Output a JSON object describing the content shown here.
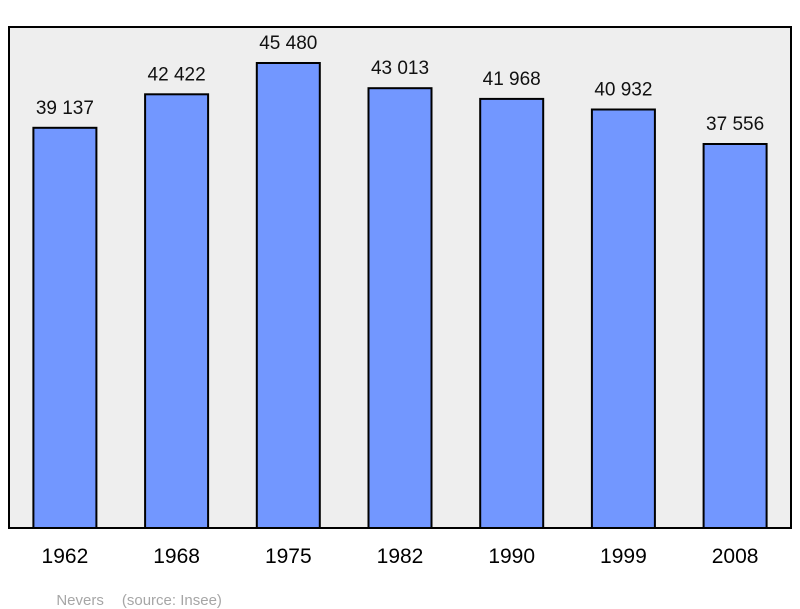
{
  "chart_data": {
    "type": "bar",
    "categories": [
      "1962",
      "1968",
      "1975",
      "1982",
      "1990",
      "1999",
      "2008"
    ],
    "values": [
      39137,
      42422,
      45480,
      43013,
      41968,
      40932,
      37556
    ],
    "value_labels": [
      "39 137",
      "42 422",
      "45 480",
      "43 013",
      "41 968",
      "40 932",
      "37 556"
    ],
    "ylim": [
      0,
      49000
    ],
    "grid": false,
    "legend": "none"
  },
  "caption": {
    "place": "Nevers",
    "source": "(source: Insee)"
  },
  "colors": {
    "bar": "#7297ff",
    "plot_background": "#eeeeee"
  }
}
